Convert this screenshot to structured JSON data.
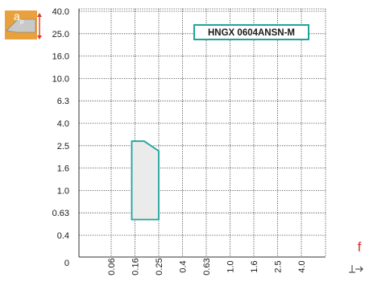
{
  "chart_data": {
    "type": "area",
    "title": "",
    "xlabel": "",
    "ylabel": "",
    "y_ticks": [
      "40.0",
      "25.0",
      "16.0",
      "10.0",
      "6.3",
      "4.0",
      "2.5",
      "1.6",
      "1.0",
      "0.63",
      "0.4",
      "0"
    ],
    "x_ticks": [
      "0.06",
      "0.16",
      "0.25",
      "0.4",
      "0.63",
      "1.0",
      "1.6",
      "2.5",
      "4.0"
    ],
    "x_origin_label": "0",
    "grid": true,
    "series": [
      {
        "name": "HNGX 0604ANSN-M",
        "points": [
          {
            "f": 0.14,
            "ap": 0.55
          },
          {
            "f": 0.14,
            "ap": 2.75
          },
          {
            "f": 0.19,
            "ap": 2.75
          },
          {
            "f": 0.25,
            "ap": 2.25
          },
          {
            "f": 0.25,
            "ap": 0.55
          }
        ]
      }
    ],
    "legend_position": "top-right",
    "colors": {
      "region_fill": "#ebebeb",
      "region_stroke": "#1fa39a",
      "legend_border": "#1fa39a",
      "grid": "#333333",
      "f_label": "#d9312e",
      "icon_orange": "#e8a13d",
      "icon_red": "#e03a2f"
    }
  },
  "labels": {
    "ap_icon_text": "a",
    "ap_icon_sub": "p",
    "f_label": "f"
  }
}
